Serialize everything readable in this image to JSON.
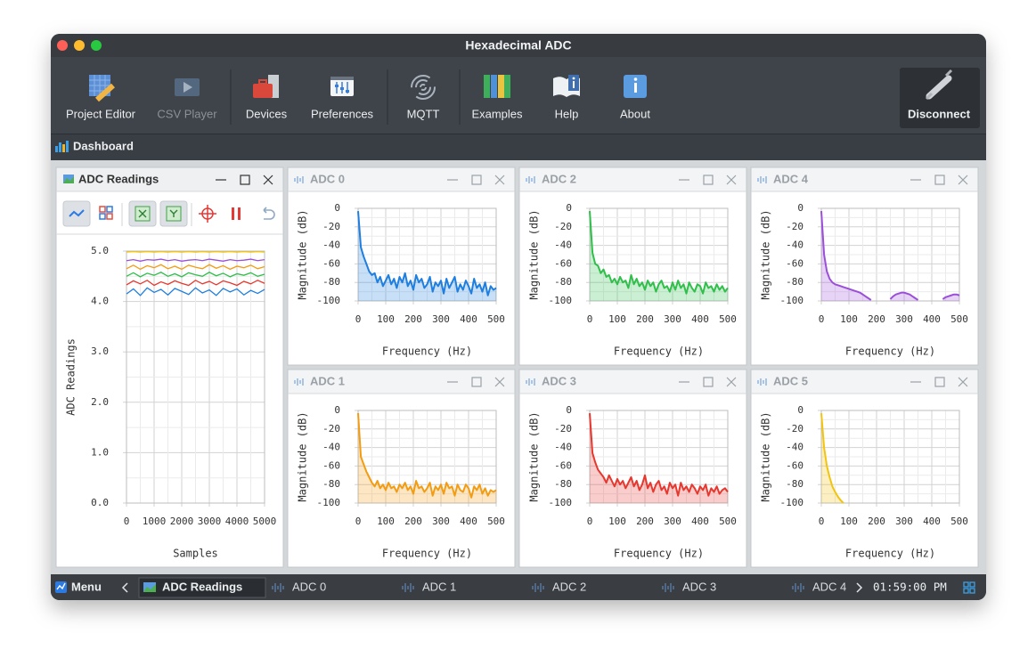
{
  "window": {
    "title": "Hexadecimal ADC",
    "toolbar": [
      "Project Editor",
      "CSV Player",
      "Devices",
      "Preferences",
      "MQTT",
      "Examples",
      "Help",
      "About"
    ],
    "disconnect": "Disconnect",
    "section": "Dashboard"
  },
  "taskbar": {
    "menu": "Menu",
    "items": [
      "ADC Readings",
      "ADC 0",
      "ADC 1",
      "ADC 2",
      "ADC 3",
      "ADC 4"
    ],
    "clock": "01:59:00 PM"
  },
  "chart_data": [
    {
      "type": "line",
      "title": "ADC Readings",
      "x_label": "Samples",
      "y_label": "ADC Readings",
      "x": [
        0,
        250,
        500,
        750,
        1000,
        1250,
        1500,
        1750,
        2000,
        2250,
        2500,
        2750,
        3000,
        3250,
        3500,
        3750,
        4000,
        4250,
        4500,
        4750,
        5000
      ],
      "xlim": [
        0,
        5000
      ],
      "xticks": [
        0,
        1000,
        2000,
        3000,
        4000,
        5000
      ],
      "ylim": [
        0,
        5
      ],
      "yticks": [
        {
          "value": 0,
          "label": "0.0"
        },
        {
          "value": 1,
          "label": "1.0"
        },
        {
          "value": 2,
          "label": "2.0"
        },
        {
          "value": 3,
          "label": "3.0"
        },
        {
          "value": 4,
          "label": "4.0"
        },
        {
          "value": 5,
          "label": "5.0"
        }
      ],
      "grid": true,
      "series": [
        {
          "color": "#1e7fe0",
          "values": [
            4.15,
            4.25,
            4.12,
            4.27,
            4.18,
            4.24,
            4.13,
            4.26,
            4.2,
            4.14,
            4.27,
            4.17,
            4.23,
            4.12,
            4.26,
            4.19,
            4.25,
            4.13,
            4.22,
            4.16,
            4.24
          ]
        },
        {
          "color": "#f39c12",
          "values": [
            4.65,
            4.72,
            4.64,
            4.71,
            4.67,
            4.73,
            4.65,
            4.7,
            4.64,
            4.72,
            4.68,
            4.65,
            4.73,
            4.66,
            4.71,
            4.64,
            4.7,
            4.67,
            4.72,
            4.65,
            4.69
          ]
        },
        {
          "color": "#2fbf4a",
          "values": [
            4.5,
            4.57,
            4.49,
            4.56,
            4.52,
            4.58,
            4.5,
            4.55,
            4.49,
            4.57,
            4.53,
            4.5,
            4.58,
            4.51,
            4.56,
            4.49,
            4.55,
            4.52,
            4.57,
            4.5,
            4.54
          ]
        },
        {
          "color": "#e8372e",
          "values": [
            4.33,
            4.41,
            4.35,
            4.42,
            4.32,
            4.39,
            4.34,
            4.41,
            4.36,
            4.32,
            4.42,
            4.35,
            4.4,
            4.33,
            4.41,
            4.37,
            4.32,
            4.4,
            4.35,
            4.42,
            4.36
          ]
        },
        {
          "color": "#9b4fd9",
          "values": [
            4.81,
            4.83,
            4.8,
            4.83,
            4.82,
            4.84,
            4.81,
            4.83,
            4.8,
            4.82,
            4.83,
            4.81,
            4.84,
            4.82,
            4.8,
            4.83,
            4.81,
            4.82,
            4.84,
            4.81,
            4.83
          ]
        },
        {
          "color": "#f2c40f",
          "values": [
            4.98,
            4.99,
            4.98,
            4.99,
            4.98,
            4.99,
            4.98,
            4.99,
            4.98,
            4.99,
            4.98,
            4.99,
            4.98,
            4.99,
            4.98,
            4.99,
            4.98,
            4.99,
            4.98,
            4.99,
            4.98
          ]
        }
      ]
    },
    {
      "type": "area",
      "title": "ADC 0",
      "x_label": "Frequency (Hz)",
      "y_label": "Magnitude (dB)",
      "x": [
        0,
        10,
        20,
        30,
        40,
        50,
        60,
        70,
        80,
        90,
        100,
        110,
        120,
        130,
        140,
        150,
        160,
        170,
        180,
        190,
        200,
        210,
        220,
        230,
        240,
        250,
        260,
        270,
        280,
        290,
        300,
        310,
        320,
        330,
        340,
        350,
        360,
        370,
        380,
        390,
        400,
        410,
        420,
        430,
        440,
        450,
        460,
        470,
        480,
        490,
        500
      ],
      "xlim": [
        0,
        500
      ],
      "xticks": [
        0,
        100,
        200,
        300,
        400,
        500
      ],
      "ylim": [
        -100,
        0
      ],
      "yticks": [
        -100,
        -80,
        -60,
        -40,
        -20,
        0
      ],
      "grid": true,
      "series": [
        {
          "color": "#1e7fe0",
          "values": [
            -3,
            -42,
            -52,
            -60,
            -68,
            -72,
            -70,
            -80,
            -74,
            -84,
            -78,
            -72,
            -82,
            -76,
            -86,
            -74,
            -80,
            -70,
            -84,
            -78,
            -88,
            -72,
            -80,
            -76,
            -86,
            -82,
            -74,
            -90,
            -80,
            -84,
            -78,
            -92,
            -76,
            -86,
            -80,
            -74,
            -90,
            -82,
            -88,
            -78,
            -84,
            -92,
            -76,
            -86,
            -82,
            -90,
            -80,
            -94,
            -84,
            -88,
            -86
          ]
        }
      ]
    },
    {
      "type": "area",
      "title": "ADC 1",
      "x_label": "Frequency (Hz)",
      "y_label": "Magnitude (dB)",
      "x": [
        0,
        10,
        20,
        30,
        40,
        50,
        60,
        70,
        80,
        90,
        100,
        110,
        120,
        130,
        140,
        150,
        160,
        170,
        180,
        190,
        200,
        210,
        220,
        230,
        240,
        250,
        260,
        270,
        280,
        290,
        300,
        310,
        320,
        330,
        340,
        350,
        360,
        370,
        380,
        390,
        400,
        410,
        420,
        430,
        440,
        450,
        460,
        470,
        480,
        490,
        500
      ],
      "xlim": [
        0,
        500
      ],
      "xticks": [
        0,
        100,
        200,
        300,
        400,
        500
      ],
      "ylim": [
        -100,
        0
      ],
      "yticks": [
        -100,
        -80,
        -60,
        -40,
        -20,
        0
      ],
      "grid": true,
      "series": [
        {
          "color": "#f39c12",
          "values": [
            -3,
            -50,
            -58,
            -66,
            -72,
            -78,
            -82,
            -76,
            -84,
            -80,
            -86,
            -78,
            -84,
            -82,
            -88,
            -80,
            -84,
            -78,
            -86,
            -82,
            -90,
            -76,
            -84,
            -82,
            -88,
            -84,
            -78,
            -92,
            -82,
            -86,
            -80,
            -90,
            -78,
            -84,
            -82,
            -92,
            -80,
            -86,
            -88,
            -80,
            -84,
            -94,
            -82,
            -86,
            -80,
            -90,
            -84,
            -92,
            -86,
            -88,
            -86
          ]
        }
      ]
    },
    {
      "type": "area",
      "title": "ADC 2",
      "x_label": "Frequency (Hz)",
      "y_label": "Magnitude (dB)",
      "x": [
        0,
        10,
        20,
        30,
        40,
        50,
        60,
        70,
        80,
        90,
        100,
        110,
        120,
        130,
        140,
        150,
        160,
        170,
        180,
        190,
        200,
        210,
        220,
        230,
        240,
        250,
        260,
        270,
        280,
        290,
        300,
        310,
        320,
        330,
        340,
        350,
        360,
        370,
        380,
        390,
        400,
        410,
        420,
        430,
        440,
        450,
        460,
        470,
        480,
        490,
        500
      ],
      "xlim": [
        0,
        500
      ],
      "xticks": [
        0,
        100,
        200,
        300,
        400,
        500
      ],
      "ylim": [
        -100,
        0
      ],
      "yticks": [
        -100,
        -80,
        -60,
        -40,
        -20,
        0
      ],
      "grid": true,
      "series": [
        {
          "color": "#2fbf4a",
          "values": [
            -3,
            -48,
            -60,
            -62,
            -70,
            -66,
            -74,
            -72,
            -80,
            -76,
            -82,
            -74,
            -80,
            -78,
            -86,
            -72,
            -82,
            -76,
            -84,
            -80,
            -88,
            -78,
            -84,
            -80,
            -90,
            -82,
            -78,
            -86,
            -84,
            -90,
            -80,
            -88,
            -78,
            -86,
            -82,
            -92,
            -80,
            -86,
            -90,
            -82,
            -84,
            -92,
            -80,
            -86,
            -84,
            -90,
            -82,
            -88,
            -84,
            -90,
            -86
          ]
        }
      ]
    },
    {
      "type": "area",
      "title": "ADC 3",
      "x_label": "Frequency (Hz)",
      "y_label": "Magnitude (dB)",
      "x": [
        0,
        10,
        20,
        30,
        40,
        50,
        60,
        70,
        80,
        90,
        100,
        110,
        120,
        130,
        140,
        150,
        160,
        170,
        180,
        190,
        200,
        210,
        220,
        230,
        240,
        250,
        260,
        270,
        280,
        290,
        300,
        310,
        320,
        330,
        340,
        350,
        360,
        370,
        380,
        390,
        400,
        410,
        420,
        430,
        440,
        450,
        460,
        470,
        480,
        490,
        500
      ],
      "xlim": [
        0,
        500
      ],
      "xticks": [
        0,
        100,
        200,
        300,
        400,
        500
      ],
      "ylim": [
        -100,
        0
      ],
      "yticks": [
        -100,
        -80,
        -60,
        -40,
        -20,
        0
      ],
      "grid": true,
      "series": [
        {
          "color": "#e8372e",
          "values": [
            -3,
            -46,
            -56,
            -64,
            -68,
            -72,
            -78,
            -70,
            -76,
            -82,
            -74,
            -80,
            -76,
            -84,
            -78,
            -72,
            -82,
            -76,
            -86,
            -80,
            -70,
            -84,
            -78,
            -88,
            -80,
            -76,
            -86,
            -82,
            -90,
            -78,
            -84,
            -80,
            -92,
            -78,
            -86,
            -82,
            -88,
            -80,
            -84,
            -90,
            -82,
            -86,
            -80,
            -92,
            -84,
            -88,
            -82,
            -90,
            -86,
            -84,
            -88
          ]
        }
      ]
    },
    {
      "type": "area",
      "title": "ADC 4",
      "x_label": "Frequency (Hz)",
      "y_label": "Magnitude (dB)",
      "x": [
        0,
        10,
        20,
        30,
        40,
        50,
        60,
        70,
        80,
        90,
        100,
        110,
        120,
        130,
        140,
        150,
        160,
        170,
        180,
        190,
        200,
        210,
        220,
        230,
        240,
        250,
        260,
        270,
        280,
        290,
        300,
        310,
        320,
        330,
        340,
        350,
        360,
        370,
        380,
        390,
        400,
        410,
        420,
        430,
        440,
        450,
        460,
        470,
        480,
        490,
        500
      ],
      "xlim": [
        0,
        500
      ],
      "xticks": [
        0,
        100,
        200,
        300,
        400,
        500
      ],
      "ylim": [
        -100,
        0
      ],
      "yticks": [
        -100,
        -80,
        -60,
        -40,
        -20,
        0
      ],
      "grid": true,
      "series": [
        {
          "color": "#9b4fd9",
          "values": [
            -3,
            -50,
            -68,
            -76,
            -80,
            -82,
            -83,
            -84,
            -85,
            -86,
            -87,
            -88,
            -89,
            -90,
            -91,
            -93,
            -95,
            -97,
            -99,
            null,
            null,
            null,
            null,
            null,
            null,
            -98,
            -95,
            -93,
            -92,
            -91,
            -91,
            -92,
            -93,
            -95,
            -97,
            -99,
            null,
            null,
            null,
            null,
            null,
            null,
            null,
            null,
            -98,
            -96,
            -95,
            -94,
            -93,
            -93,
            -94
          ]
        }
      ]
    },
    {
      "type": "area",
      "title": "ADC 5",
      "x_label": "Frequency (Hz)",
      "y_label": "Magnitude (dB)",
      "x": [
        0,
        10,
        20,
        30,
        40,
        50,
        60,
        70,
        80,
        90,
        100,
        110,
        120,
        130,
        140,
        150,
        160,
        170,
        180,
        190,
        200,
        210,
        220,
        230,
        240,
        250,
        260,
        270,
        280,
        290,
        300,
        310,
        320,
        330,
        340,
        350,
        360,
        370,
        380,
        390,
        400,
        410,
        420,
        430,
        440,
        450,
        460,
        470,
        480,
        490,
        500
      ],
      "xlim": [
        0,
        500
      ],
      "xticks": [
        0,
        100,
        200,
        300,
        400,
        500
      ],
      "ylim": [
        -100,
        0
      ],
      "yticks": [
        -100,
        -80,
        -60,
        -40,
        -20,
        0
      ],
      "grid": true,
      "series": [
        {
          "color": "#f2c40f",
          "values": [
            -3,
            -40,
            -60,
            -72,
            -82,
            -88,
            -93,
            -97,
            -100,
            null,
            null,
            null,
            null,
            null,
            null,
            null,
            null,
            null,
            null,
            null,
            null,
            null,
            null,
            null,
            null,
            null,
            null,
            null,
            null,
            null,
            null,
            null,
            null,
            null,
            null,
            null,
            null,
            null,
            null,
            null,
            null,
            null,
            null,
            null,
            null,
            null,
            null,
            null,
            null,
            null,
            null
          ]
        }
      ]
    }
  ]
}
